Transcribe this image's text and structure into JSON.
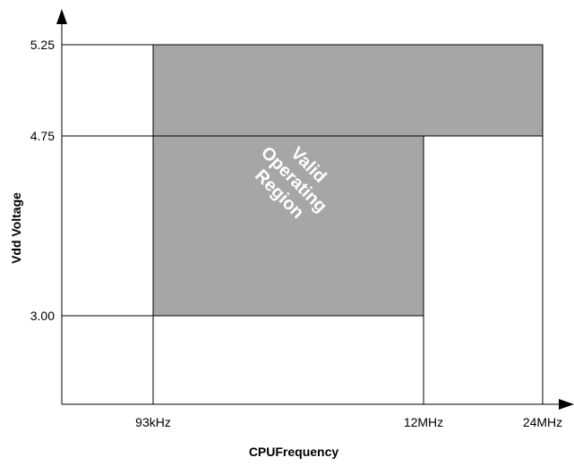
{
  "chart_data": {
    "type": "area",
    "xlabel": "CPUFrequency",
    "ylabel": "Vdd Voltage",
    "x_ticks": [
      "93kHz",
      "12MHz",
      "24MHz"
    ],
    "y_ticks": [
      "3.00",
      "4.75",
      "5.25"
    ],
    "region": {
      "label_lines": [
        "Valid",
        "Operating",
        "Region"
      ],
      "fill_color": "#a6a6a6",
      "polygon": [
        [
          "93kHz",
          "3.00"
        ],
        [
          "12MHz",
          "3.00"
        ],
        [
          "12MHz",
          "4.75"
        ],
        [
          "24MHz",
          "4.75"
        ],
        [
          "24MHz",
          "5.25"
        ],
        [
          "93kHz",
          "5.25"
        ]
      ]
    },
    "grid": false
  }
}
